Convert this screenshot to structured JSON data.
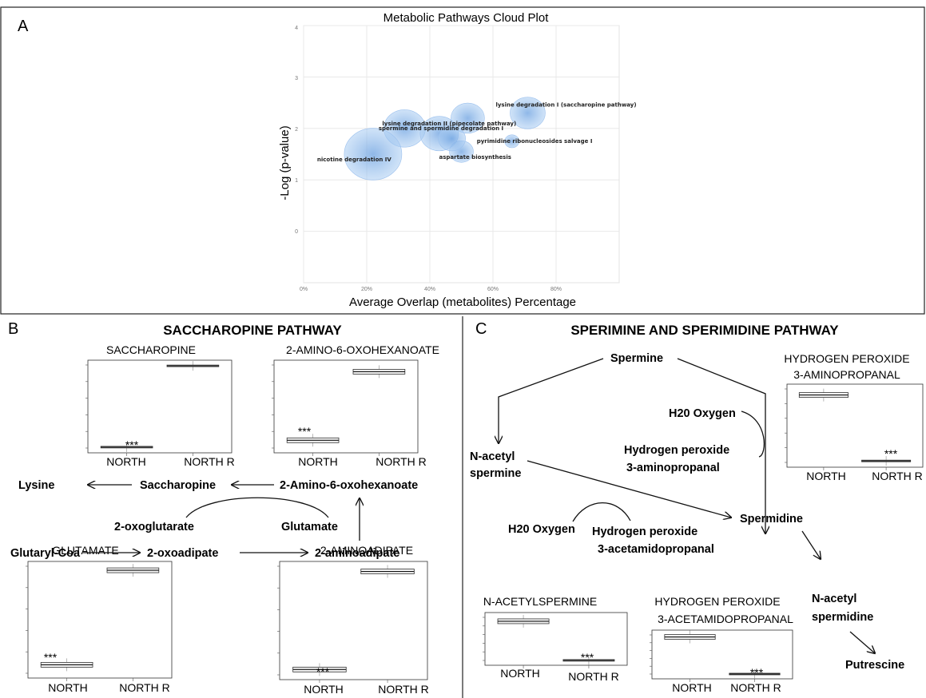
{
  "panels": {
    "a": "A",
    "b": "B",
    "c": "C"
  },
  "cloud": {
    "title": "Metabolic Pathways Cloud Plot",
    "xlabel": "Average Overlap (metabolites) Percentage",
    "ylabel": "-Log (p-value)",
    "yticks": [
      "4",
      "3",
      "2",
      "1",
      "0"
    ],
    "xticks": [
      "0%",
      "20%",
      "40%",
      "60%",
      "80%"
    ],
    "bubble_color": "#7fb0e6"
  },
  "chart_data": {
    "type": "scatter",
    "title": "Metabolic Pathways Cloud Plot",
    "xlabel": "Average Overlap (metabolites) Percentage",
    "ylabel": "-Log (p-value)",
    "xlim": [
      0,
      100
    ],
    "ylim": [
      -1,
      4
    ],
    "points": [
      {
        "label": "lysine degradation I (saccharopine pathway)",
        "x": 71,
        "y": 2.3
      },
      {
        "label": "lysine degradation II (pipecolate pathway)",
        "x": 32,
        "y": 2.0
      },
      {
        "label": "spermine and spermidine degradation I",
        "x": 43,
        "y": 1.9
      },
      {
        "label": "pyrimidine ribonucleosides salvage I",
        "x": 66,
        "y": 1.75
      },
      {
        "label": "nicotine degradation IV",
        "x": 22,
        "y": 1.5
      },
      {
        "label": "aspartate biosynthesis",
        "x": 50,
        "y": 1.55
      },
      {
        "label": "",
        "x": 52,
        "y": 2.2
      },
      {
        "label": "",
        "x": 47,
        "y": 1.8
      }
    ]
  },
  "saccharopine": {
    "title": "SACCHAROPINE PATHWAY",
    "nodes": {
      "lysine": "Lysine",
      "saccharopine": "Saccharopine",
      "amino_oxohexanoate": "2-Amino-6-oxohexanoate",
      "oxoglutarate": "2-oxoglutarate",
      "glutamate": "Glutamate",
      "glutaryl_coa": "Glutaryl-Coa",
      "oxoadipate": "2-oxoadipate",
      "aminoadipate": "2-aminoadipate"
    },
    "boxplots": {
      "saccharopine": "SACCHAROPINE",
      "amino_oxohexanoate": "2-AMINO-6-OXOHEXANOATE",
      "glutamate": "GLUTAMATE",
      "aminoadipate": "2-AMINOADIPATE"
    }
  },
  "spermine": {
    "title": "SPERIMINE AND SPERIMIDINE PATHWAY",
    "nodes": {
      "spermine": "Spermine",
      "n_acetyl_spermine_1": "N-acetyl",
      "n_acetyl_spermine_2": "spermine",
      "h2o_oxygen_top": "H20 Oxygen",
      "h2o2_top_1": "Hydrogen peroxide",
      "h2o2_top_2": "3-aminopropanal",
      "h2o_oxygen_bottom": "H20 Oxygen",
      "h2o2_bottom_1": "Hydrogen peroxide",
      "h2o2_bottom_2": "3-acetamidopropanal",
      "spermidine": "Spermidine",
      "n_acetyl_spermidine_1": "N-acetyl",
      "n_acetyl_spermidine_2": "spermidine",
      "putrescine": "Putrescine"
    },
    "boxplots": {
      "h2o2_aminopropanal_1": "HYDROGEN PEROXIDE",
      "h2o2_aminopropanal_2": "3-AMINOPROPANAL",
      "n_acetylspermine": "N-ACETYLSPERMINE",
      "h2o2_acetamidopropanal_1": "HYDROGEN PEROXIDE",
      "h2o2_acetamidopropanal_2": "3-ACETAMIDOPROPANAL"
    }
  },
  "groups": {
    "north": "NORTH",
    "north_r": "NORTH R",
    "significance": "***"
  },
  "boxplot_levels": {
    "saccharopine": {
      "north": 0.02,
      "north_r": 0.98,
      "north_on_bottom": true
    },
    "amino_oxohexanoate": {
      "north": 0.12,
      "north_r": 0.93
    },
    "glutamate": {
      "north": 0.1,
      "north_r": 0.97
    },
    "aminoadipate": {
      "north": 0.07,
      "north_r": 0.96
    },
    "h2o2_aminopropanal": {
      "north": 0.93,
      "north_r": 0.03
    },
    "n_acetylspermine": {
      "north": 0.93,
      "north_r": 0.02
    },
    "h2o2_acetamidopropanal": {
      "north": 0.97,
      "north_r": 0.02
    }
  }
}
